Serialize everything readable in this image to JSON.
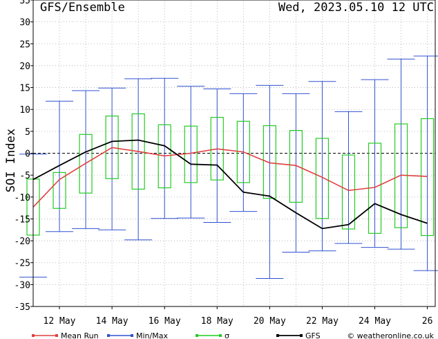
{
  "chart_data": {
    "type": "line",
    "title": "GFS/Ensemble",
    "timestamp": "Wed, 2023.05.10   12 UTC",
    "ylabel": "SOI Index",
    "ylim": [
      -35,
      35
    ],
    "yticks": [
      -35,
      -30,
      -25,
      -20,
      -15,
      -10,
      -5,
      0,
      5,
      10,
      15,
      20,
      25,
      30,
      35
    ],
    "xlim": [
      11.0,
      26.3
    ],
    "xticks": [
      {
        "day": 12,
        "label": "12 May"
      },
      {
        "day": 14,
        "label": "14 May"
      },
      {
        "day": 16,
        "label": "16 May"
      },
      {
        "day": 18,
        "label": "18 May"
      },
      {
        "day": 20,
        "label": "20 May"
      },
      {
        "day": 22,
        "label": "22 May"
      },
      {
        "day": 24,
        "label": "24 May"
      },
      {
        "day": 26,
        "label": "26"
      }
    ],
    "x": [
      11.0,
      12.0,
      13.0,
      14.0,
      15.0,
      16.0,
      17.0,
      18.0,
      19.0,
      20.0,
      21.0,
      22.0,
      23.0,
      24.0,
      25.0,
      26.0
    ],
    "series": [
      {
        "name": "Mean Run",
        "color": "#e04040",
        "values": [
          -12.3,
          -6.0,
          -2.3,
          1.3,
          0.4,
          -0.6,
          0.0,
          1.0,
          0.3,
          -2.2,
          -2.8,
          -5.5,
          -8.5,
          -7.8,
          -5.0,
          -5.3
        ]
      },
      {
        "name": "GFS",
        "color": "#000000",
        "values": [
          -6.0,
          -2.8,
          0.3,
          2.7,
          3.0,
          1.7,
          -2.5,
          -2.7,
          -8.9,
          -9.8,
          -13.6,
          -17.2,
          -16.3,
          -11.5,
          -14.0,
          -16.0
        ]
      },
      {
        "name": "Min/Max",
        "color": "#3050d0",
        "min": [
          -28.3,
          -17.9,
          -17.2,
          -17.5,
          -19.8,
          -14.9,
          -14.8,
          -15.8,
          -13.3,
          -28.6,
          -22.6,
          -22.3,
          -20.6,
          -21.5,
          -21.9,
          -26.8
        ],
        "max": [
          -0.2,
          11.9,
          14.3,
          14.9,
          17.0,
          17.1,
          15.3,
          14.7,
          13.6,
          15.5,
          13.6,
          16.4,
          9.5,
          16.8,
          21.5,
          22.2
        ]
      },
      {
        "name": "σ",
        "color": "#22cc22",
        "low": [
          -18.7,
          -12.6,
          -9.1,
          -5.8,
          -8.2,
          -7.9,
          -6.7,
          -6.1,
          -6.7,
          -10.3,
          -11.2,
          -14.9,
          -17.3,
          -18.3,
          -17.0,
          -18.8
        ],
        "high": [
          -5.9,
          -4.4,
          4.3,
          8.5,
          9.0,
          6.5,
          6.2,
          8.2,
          7.3,
          6.3,
          5.2,
          3.4,
          -0.4,
          2.3,
          6.7,
          7.9
        ]
      }
    ],
    "legend": {
      "placement": "bottom",
      "items": [
        {
          "label": "Mean Run",
          "color": "#e04040"
        },
        {
          "label": "Min/Max",
          "color": "#3050d0"
        },
        {
          "label": "σ",
          "color": "#22cc22"
        },
        {
          "label": "GFS",
          "color": "#000000"
        }
      ]
    },
    "credit": "© weatheronline.co.uk",
    "grid": true
  }
}
